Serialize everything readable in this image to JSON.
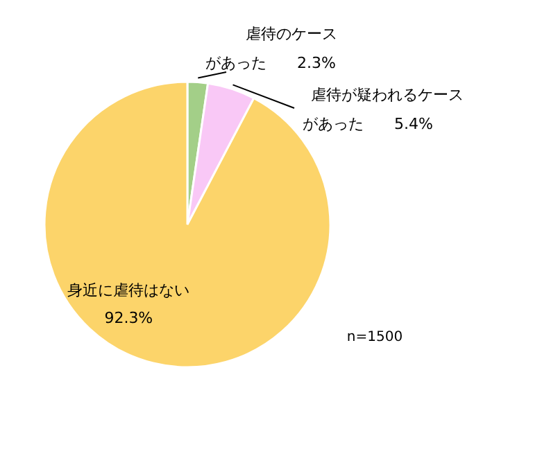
{
  "chart_data": {
    "type": "pie",
    "categories": [
      "虐待のケースがあった",
      "虐待が疑われるケースがあった",
      "身近に虐待はない"
    ],
    "values": [
      2.3,
      5.4,
      92.3
    ],
    "value_labels": [
      "2.3%",
      "5.4%",
      "92.3%"
    ],
    "colors": [
      "#a3cf88",
      "#f9c8f6",
      "#fcd46a"
    ],
    "annotations": [
      "n=1500"
    ]
  }
}
